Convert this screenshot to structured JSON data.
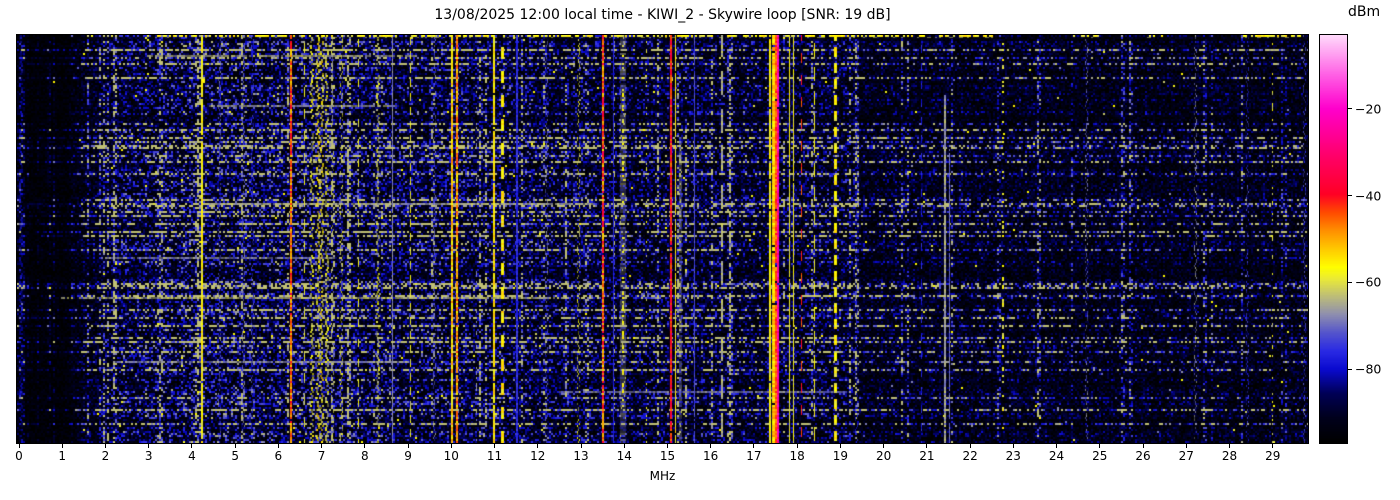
{
  "figure": {
    "title": "13/08/2025 12:00 local time - KIWI_2 - Skywire loop [SNR: 19 dB]"
  },
  "axes": {
    "xlabel": "MHz",
    "x_ticks": [
      0,
      1,
      2,
      3,
      4,
      5,
      6,
      7,
      8,
      9,
      10,
      11,
      12,
      13,
      14,
      15,
      16,
      17,
      18,
      19,
      20,
      21,
      22,
      23,
      24,
      25,
      26,
      27,
      28,
      29
    ]
  },
  "colorbar": {
    "label": "dBm",
    "ticks": [
      -20,
      -40,
      -60,
      -80
    ],
    "vmin": -97,
    "vmax": -3,
    "stops": [
      [
        0.0,
        "#000000"
      ],
      [
        0.06,
        "#00001c"
      ],
      [
        0.12,
        "#000055"
      ],
      [
        0.18,
        "#0a0acf"
      ],
      [
        0.225,
        "#2a2ae4"
      ],
      [
        0.27,
        "#5555cc"
      ],
      [
        0.315,
        "#8f8fae"
      ],
      [
        0.355,
        "#b9b97e"
      ],
      [
        0.4,
        "#e8e83a"
      ],
      [
        0.43,
        "#ffff00"
      ],
      [
        0.47,
        "#ffd000"
      ],
      [
        0.52,
        "#ff9000"
      ],
      [
        0.565,
        "#ff4a00"
      ],
      [
        0.61,
        "#ff0025"
      ],
      [
        0.7,
        "#ff0066"
      ],
      [
        0.82,
        "#ff00cc"
      ],
      [
        0.9,
        "#ff5ce4"
      ],
      [
        1.0,
        "#ffd9fb"
      ]
    ]
  },
  "chart_data": {
    "type": "heatmap",
    "subtype": "radio-spectrogram-waterfall",
    "x_range_mhz": [
      0,
      29.77
    ],
    "value_range_dbm": [
      -97,
      -3
    ],
    "seed": 20250813,
    "noise_profile": [
      {
        "from": 0.0,
        "to": 0.12,
        "level": 0.4
      },
      {
        "from": 0.12,
        "to": 1.55,
        "level": 0.07
      },
      {
        "from": 1.55,
        "to": 2.3,
        "level": 0.3
      },
      {
        "from": 2.3,
        "to": 3.2,
        "level": 0.52
      },
      {
        "from": 3.2,
        "to": 8.6,
        "level": 0.62
      },
      {
        "from": 8.6,
        "to": 13.2,
        "level": 0.52
      },
      {
        "from": 13.2,
        "to": 16.2,
        "level": 0.46
      },
      {
        "from": 16.2,
        "to": 19.4,
        "level": 0.42
      },
      {
        "from": 19.4,
        "to": 24.0,
        "level": 0.3
      },
      {
        "from": 24.0,
        "to": 29.77,
        "level": 0.27
      }
    ],
    "blue_columns": {
      "count": 52,
      "boost_min": 1.9,
      "boost_max": 3.2
    },
    "row_streaks": {
      "probability": 0.17,
      "gain_min": 1.1,
      "gain_max": 3.3
    },
    "white_streaks": [
      {
        "y": 0.05,
        "from": 3.0,
        "to": 9.2,
        "dbm": -64
      },
      {
        "y": 0.175,
        "from": 4.4,
        "to": 8.7,
        "dbm": -66
      },
      {
        "y": 0.415,
        "from": 4.4,
        "to": 13.3,
        "dbm": -65
      },
      {
        "y": 0.545,
        "from": 1.9,
        "to": 7.3,
        "dbm": -67
      },
      {
        "y": 0.645,
        "from": 1.0,
        "to": 12.7,
        "dbm": -63
      },
      {
        "y": 0.8,
        "from": 2.2,
        "to": 9.0,
        "dbm": -67
      },
      {
        "y": 0.875,
        "from": 12.5,
        "to": 19.2,
        "dbm": -68
      }
    ],
    "top_edge_segments": [
      {
        "from": 2.9,
        "to": 22.5,
        "dbm": -57,
        "p": 0.55
      },
      {
        "from": 24.4,
        "to": 25.0,
        "dbm": -58,
        "p": 0.5
      },
      {
        "from": 26.1,
        "to": 26.45,
        "dbm": -57,
        "p": 0.6
      },
      {
        "from": 28.3,
        "to": 29.7,
        "dbm": -57,
        "p": 0.6
      }
    ],
    "signals": [
      {
        "mhz": 0.05,
        "dbm": -80,
        "w": 2,
        "style": "speckle",
        "jitter": 5
      },
      {
        "mhz": 4.23,
        "dbm": -57,
        "w": 2,
        "style": "solid",
        "jitter": 4
      },
      {
        "mhz": 4.62,
        "dbm": -72,
        "w": 1,
        "style": "speckle",
        "jitter": 4
      },
      {
        "mhz": 5.19,
        "dbm": -68,
        "w": 1,
        "style": "speckle",
        "jitter": 4
      },
      {
        "mhz": 5.38,
        "dbm": -75,
        "w": 1,
        "style": "speckle",
        "jitter": 4
      },
      {
        "mhz": 6.29,
        "dbm": -46,
        "w": 2,
        "style": "solid",
        "jitter": 8
      },
      {
        "mhz": 6.6,
        "dbm": -60,
        "w": 1,
        "style": "dash",
        "jitter": 4
      },
      {
        "mhz": 6.78,
        "dbm": -59,
        "w": 2,
        "style": "speckle",
        "jitter": 5
      },
      {
        "mhz": 6.92,
        "dbm": -57,
        "w": 2,
        "style": "speckle",
        "jitter": 5
      },
      {
        "mhz": 7.02,
        "dbm": -57,
        "w": 2,
        "style": "speckle",
        "jitter": 5
      },
      {
        "mhz": 7.12,
        "dbm": -60,
        "w": 2,
        "style": "speckle",
        "jitter": 5
      },
      {
        "mhz": 7.25,
        "dbm": -63,
        "w": 1,
        "style": "speckle",
        "jitter": 4
      },
      {
        "mhz": 7.45,
        "dbm": -59,
        "w": 1,
        "style": "speckle",
        "jitter": 4
      },
      {
        "mhz": 7.84,
        "dbm": -59,
        "w": 1,
        "style": "dash",
        "jitter": 4
      },
      {
        "mhz": 8.31,
        "dbm": -61,
        "w": 2,
        "style": "speckle",
        "jitter": 5
      },
      {
        "mhz": 8.62,
        "dbm": -68,
        "w": 1,
        "style": "solid",
        "jitter": 3
      },
      {
        "mhz": 9.04,
        "dbm": -59,
        "w": 1,
        "style": "dash",
        "jitter": 4
      },
      {
        "mhz": 9.6,
        "dbm": -70,
        "w": 1,
        "style": "speckle",
        "jitter": 4
      },
      {
        "mhz": 10.02,
        "dbm": -53,
        "w": 2,
        "style": "solid",
        "jitter": 6
      },
      {
        "mhz": 10.12,
        "dbm": -50,
        "w": 2,
        "style": "solid",
        "jitter": 8
      },
      {
        "mhz": 10.58,
        "dbm": -67,
        "w": 1,
        "style": "dot",
        "jitter": 3
      },
      {
        "mhz": 10.98,
        "dbm": -55,
        "w": 2,
        "style": "solid",
        "jitter": 4
      },
      {
        "mhz": 11.18,
        "dbm": -56,
        "w": 3,
        "style": "dash",
        "jitter": 4
      },
      {
        "mhz": 11.53,
        "dbm": -76,
        "w": 2,
        "style": "solid",
        "jitter": 3
      },
      {
        "mhz": 12.2,
        "dbm": -69,
        "w": 1,
        "style": "speckle",
        "jitter": 4
      },
      {
        "mhz": 12.92,
        "dbm": -59,
        "w": 1,
        "style": "speckle",
        "jitter": 4
      },
      {
        "mhz": 13.5,
        "dbm": -44,
        "w": 2,
        "style": "solid",
        "jitter": 11
      },
      {
        "mhz": 13.73,
        "dbm": -77,
        "w": 1,
        "style": "solid",
        "jitter": 3
      },
      {
        "mhz": 13.98,
        "dbm": -67,
        "w": 6,
        "style": "fuzz",
        "jitter": 4
      },
      {
        "mhz": 13.98,
        "dbm": -58,
        "w": 2,
        "style": "dot",
        "jitter": 4
      },
      {
        "mhz": 14.5,
        "dbm": -60,
        "w": 1,
        "style": "dot",
        "jitter": 4
      },
      {
        "mhz": 15.09,
        "dbm": -40,
        "w": 2,
        "style": "solid",
        "jitter": 7
      },
      {
        "mhz": 15.17,
        "dbm": -57,
        "w": 1,
        "style": "solid",
        "jitter": 5
      },
      {
        "mhz": 15.28,
        "dbm": -67,
        "w": 3,
        "style": "fuzz",
        "jitter": 4,
        "y0": 0.25
      },
      {
        "mhz": 15.62,
        "dbm": -73,
        "w": 1,
        "style": "solid",
        "jitter": 3
      },
      {
        "mhz": 16.25,
        "dbm": -64,
        "w": 2,
        "style": "longdash",
        "jitter": 3
      },
      {
        "mhz": 17.38,
        "dbm": -57,
        "w": 2,
        "style": "solid",
        "jitter": 4
      },
      {
        "mhz": 17.44,
        "dbm": -53,
        "w": 3,
        "style": "solid",
        "jitter": 5
      },
      {
        "mhz": 17.5,
        "dbm": -45,
        "w": 2,
        "style": "solid",
        "jitter": 5
      },
      {
        "mhz": 17.56,
        "dbm": -24,
        "w": 2,
        "style": "solid",
        "jitter": 6
      },
      {
        "mhz": 17.8,
        "dbm": -58,
        "w": 1,
        "style": "solid",
        "jitter": 4
      },
      {
        "mhz": 17.9,
        "dbm": -58,
        "w": 1,
        "style": "solid",
        "jitter": 4
      },
      {
        "mhz": 18.09,
        "dbm": -42,
        "w": 1,
        "style": "dash",
        "jitter": 5
      },
      {
        "mhz": 18.4,
        "dbm": -58,
        "w": 1,
        "style": "dash",
        "jitter": 4
      },
      {
        "mhz": 18.88,
        "dbm": -57,
        "w": 3,
        "style": "dash",
        "jitter": 4
      },
      {
        "mhz": 19.35,
        "dbm": -78,
        "w": 1,
        "style": "speckle",
        "jitter": 4
      },
      {
        "mhz": 20.87,
        "dbm": -77,
        "w": 1,
        "style": "dash",
        "jitter": 3
      },
      {
        "mhz": 21.42,
        "dbm": -66,
        "w": 2,
        "style": "solid",
        "jitter": 4,
        "y0": 0.15
      },
      {
        "mhz": 21.52,
        "dbm": -70,
        "w": 1,
        "style": "solid",
        "jitter": 3,
        "y0": 0.28
      },
      {
        "mhz": 22.75,
        "dbm": -58,
        "w": 2,
        "style": "dot",
        "jitter": 4
      },
      {
        "mhz": 24.68,
        "dbm": -70,
        "w": 1,
        "style": "speckle",
        "jitter": 4
      },
      {
        "mhz": 27.2,
        "dbm": -68,
        "w": 1,
        "style": "speckle",
        "jitter": 4
      },
      {
        "mhz": 28.4,
        "dbm": -75,
        "w": 1,
        "style": "speckle",
        "jitter": 3
      },
      {
        "mhz": 28.98,
        "dbm": -59,
        "w": 1,
        "style": "dot",
        "jitter": 4
      },
      {
        "mhz": 29.72,
        "dbm": -73,
        "w": 1,
        "style": "speckle",
        "jitter": 3
      }
    ]
  }
}
